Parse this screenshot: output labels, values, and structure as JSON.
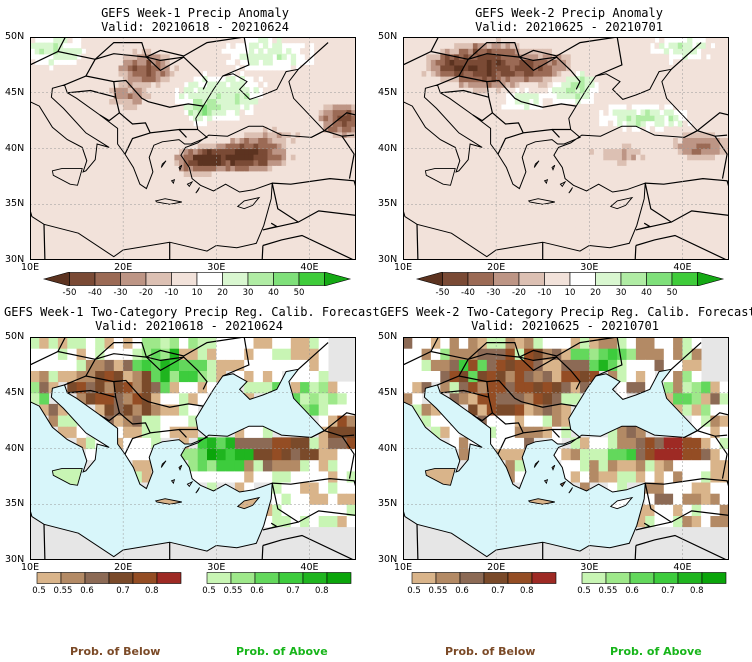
{
  "panels": [
    {
      "title": "GEFS Week-1 Precip Anomaly",
      "valid": "Valid: 20210618 - 20210624"
    },
    {
      "title": "GEFS Week-2 Precip Anomaly",
      "valid": "Valid: 20210625 - 20210701"
    },
    {
      "title": "GEFS Week-1 Two-Category Precip Reg. Calib. Forecast",
      "valid": "Valid: 20210618 - 20210624"
    },
    {
      "title": "GEFS Week-2 Two-Category Precip Reg. Calib. Forecast",
      "valid": "Valid: 20210625 - 20210701"
    }
  ],
  "axes": {
    "lat_labels": [
      "50N",
      "45N",
      "40N",
      "35N",
      "30N"
    ],
    "lon_labels": [
      "10E",
      "20E",
      "30E",
      "40E"
    ]
  },
  "anomaly_colorbar": {
    "labels": [
      "-50",
      "-40",
      "-30",
      "-20",
      "-10",
      "10",
      "20",
      "30",
      "40",
      "50"
    ],
    "colors": [
      "#5c3320",
      "#7a4a35",
      "#9b6a55",
      "#bd9585",
      "#dcc0b3",
      "#f2e2da",
      "#ffffff",
      "#d9f7d0",
      "#b0eca4",
      "#7fe07a",
      "#3fcc3a",
      "#15a915"
    ]
  },
  "prob_below_colorbar": {
    "labels": [
      "0.5",
      "0.55",
      "0.6",
      "0.7",
      "0.8"
    ],
    "colors": [
      "#d9b48a",
      "#b38a65",
      "#8c6a55",
      "#7a4a2a",
      "#944d24",
      "#9e2a24"
    ]
  },
  "prob_above_colorbar": {
    "labels": [
      "0.5",
      "0.55",
      "0.6",
      "0.7",
      "0.8"
    ],
    "colors": [
      "#c8f5b4",
      "#9ee88a",
      "#63d85c",
      "#3dcc3d",
      "#1fb51f",
      "#0aa50a"
    ]
  },
  "legend": {
    "below_left": "Prob. of Below",
    "above_left": "Prob. of Above",
    "below_right": "Prob. of Below",
    "above_right": "Prob. of Above"
  },
  "colors": {
    "sea": "#d8f6fa",
    "gray_land": "#e6e6e6",
    "below_text": "#7b4a27",
    "above_text": "#17b51a"
  }
}
